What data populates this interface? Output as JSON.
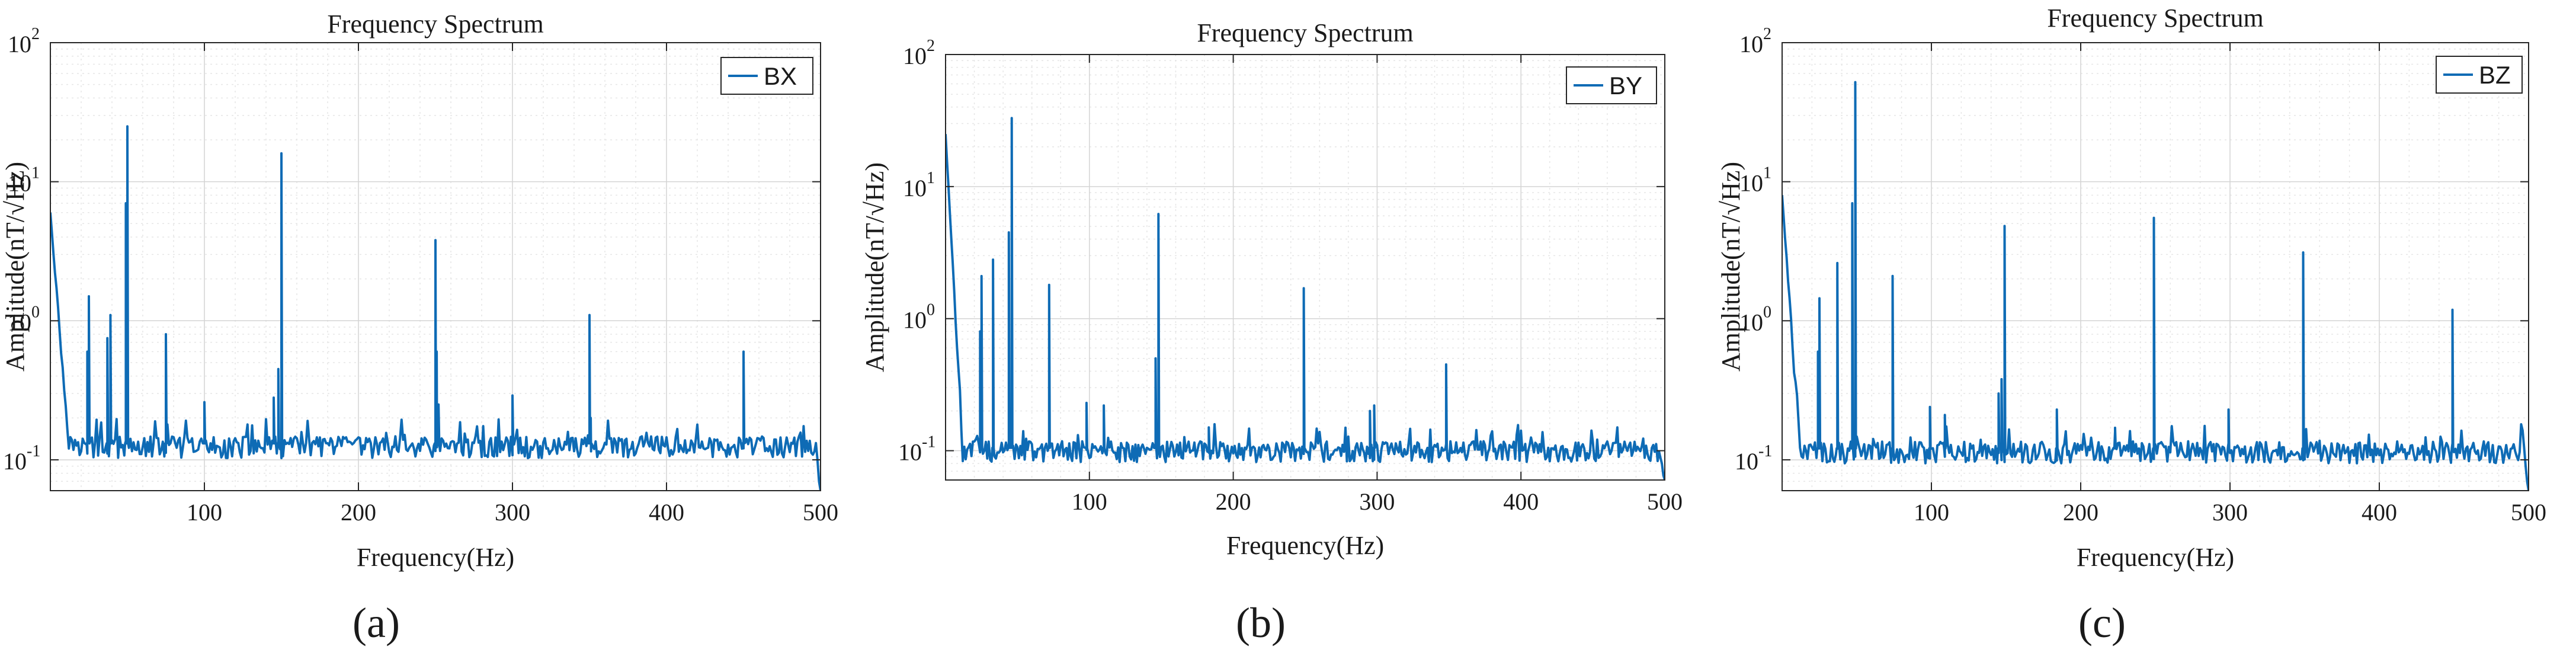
{
  "colors": {
    "series": "#0e6bb5",
    "axes": "#262626",
    "grid": "#d4d4d4"
  },
  "chart_data": [
    {
      "type": "line",
      "panel_label": "(a)",
      "title": "Frequency Spectrum",
      "xlabel": "Frequency(Hz)",
      "ylabel": "Amplitude(nT/√Hz)",
      "xlim": [
        0,
        500
      ],
      "ylim": [
        0.06,
        100
      ],
      "yscale": "log",
      "grid": true,
      "legend_loc": "top-right",
      "xticks": [
        100,
        200,
        300,
        400,
        500
      ],
      "yticks": [
        0.1,
        1,
        10,
        100
      ],
      "yticklabels": [
        "10",
        "10",
        "10",
        "10"
      ],
      "ytickexponents": [
        "-1",
        "0",
        "1",
        "2"
      ],
      "series": [
        {
          "name": "BX",
          "baseline": 0.125,
          "start": 6.0,
          "end_values": [
            0.1,
            0.07,
            0.06
          ],
          "peaks": [
            [
              25,
              1.5
            ],
            [
              24,
              0.6
            ],
            [
              37,
              0.75
            ],
            [
              39,
              1.1
            ],
            [
              49,
              7
            ],
            [
              50,
              25
            ],
            [
              75,
              0.8
            ],
            [
              100,
              0.26
            ],
            [
              145,
              0.28
            ],
            [
              148,
              0.45
            ],
            [
              150,
              16
            ],
            [
              250,
              3.8
            ],
            [
              252,
              0.25
            ],
            [
              300,
              0.29
            ],
            [
              350,
              1.1
            ],
            [
              450,
              0.6
            ],
            [
              250.8,
              0.6
            ],
            [
              350.8,
              0.2
            ]
          ]
        }
      ]
    },
    {
      "type": "line",
      "panel_label": "(b)",
      "title": "Frequency Spectrum",
      "xlabel": "Frequency(Hz)",
      "ylabel": "Amplitude(nT/√Hz)",
      "xlim": [
        0,
        500
      ],
      "ylim": [
        0.06,
        100
      ],
      "yscale": "log",
      "grid": true,
      "legend_loc": "top-right",
      "xticks": [
        100,
        200,
        300,
        400,
        500
      ],
      "yticks": [
        0.1,
        1,
        10,
        100
      ],
      "yticklabels": [
        "10",
        "10",
        "10",
        "10"
      ],
      "ytickexponents": [
        "-1",
        "0",
        "1",
        "2"
      ],
      "series": [
        {
          "name": "BY",
          "baseline": 0.1,
          "start": 25,
          "end_values": [
            0.08,
            0.065,
            0.055
          ],
          "peaks": [
            [
              24,
              0.8
            ],
            [
              25,
              2.1
            ],
            [
              33,
              2.8
            ],
            [
              44,
              4.5
            ],
            [
              46,
              33
            ],
            [
              72,
              1.8
            ],
            [
              98,
              0.23
            ],
            [
              110,
              0.22
            ],
            [
              146,
              0.5
            ],
            [
              148,
              6.2
            ],
            [
              183,
              0.15
            ],
            [
              249,
              1.7
            ],
            [
              295,
              0.2
            ],
            [
              298,
              0.22
            ],
            [
              348,
              0.45
            ]
          ]
        }
      ]
    },
    {
      "type": "line",
      "panel_label": "(c)",
      "title": "Frequency Spectrum",
      "xlabel": "Frequency(Hz)",
      "ylabel": "Amplitude(nT/√Hz)",
      "xlim": [
        0,
        500
      ],
      "ylim": [
        0.06,
        100
      ],
      "yscale": "log",
      "grid": true,
      "legend_loc": "top-right",
      "xticks": [
        100,
        200,
        300,
        400,
        500
      ],
      "yticks": [
        0.1,
        1,
        10,
        100
      ],
      "yticklabels": [
        "10",
        "10",
        "10",
        "10"
      ],
      "ytickexponents": [
        "-1",
        "0",
        "1",
        "2"
      ],
      "series": [
        {
          "name": "BZ",
          "baseline": 0.115,
          "start": 8.0,
          "end_values": [
            0.09,
            0.07,
            0.06
          ],
          "peaks": [
            [
              24,
              0.6
            ],
            [
              25,
              1.45
            ],
            [
              37,
              2.6
            ],
            [
              47,
              7
            ],
            [
              49,
              52
            ],
            [
              74,
              2.1
            ],
            [
              99,
              0.24
            ],
            [
              109,
              0.21
            ],
            [
              145,
              0.3
            ],
            [
              147,
              0.38
            ],
            [
              149,
              4.8
            ],
            [
              184,
              0.23
            ],
            [
              223,
              0.17
            ],
            [
              249,
              5.5
            ],
            [
              299,
              0.23
            ],
            [
              349,
              3.1
            ],
            [
              449,
              1.2
            ]
          ]
        }
      ]
    }
  ]
}
